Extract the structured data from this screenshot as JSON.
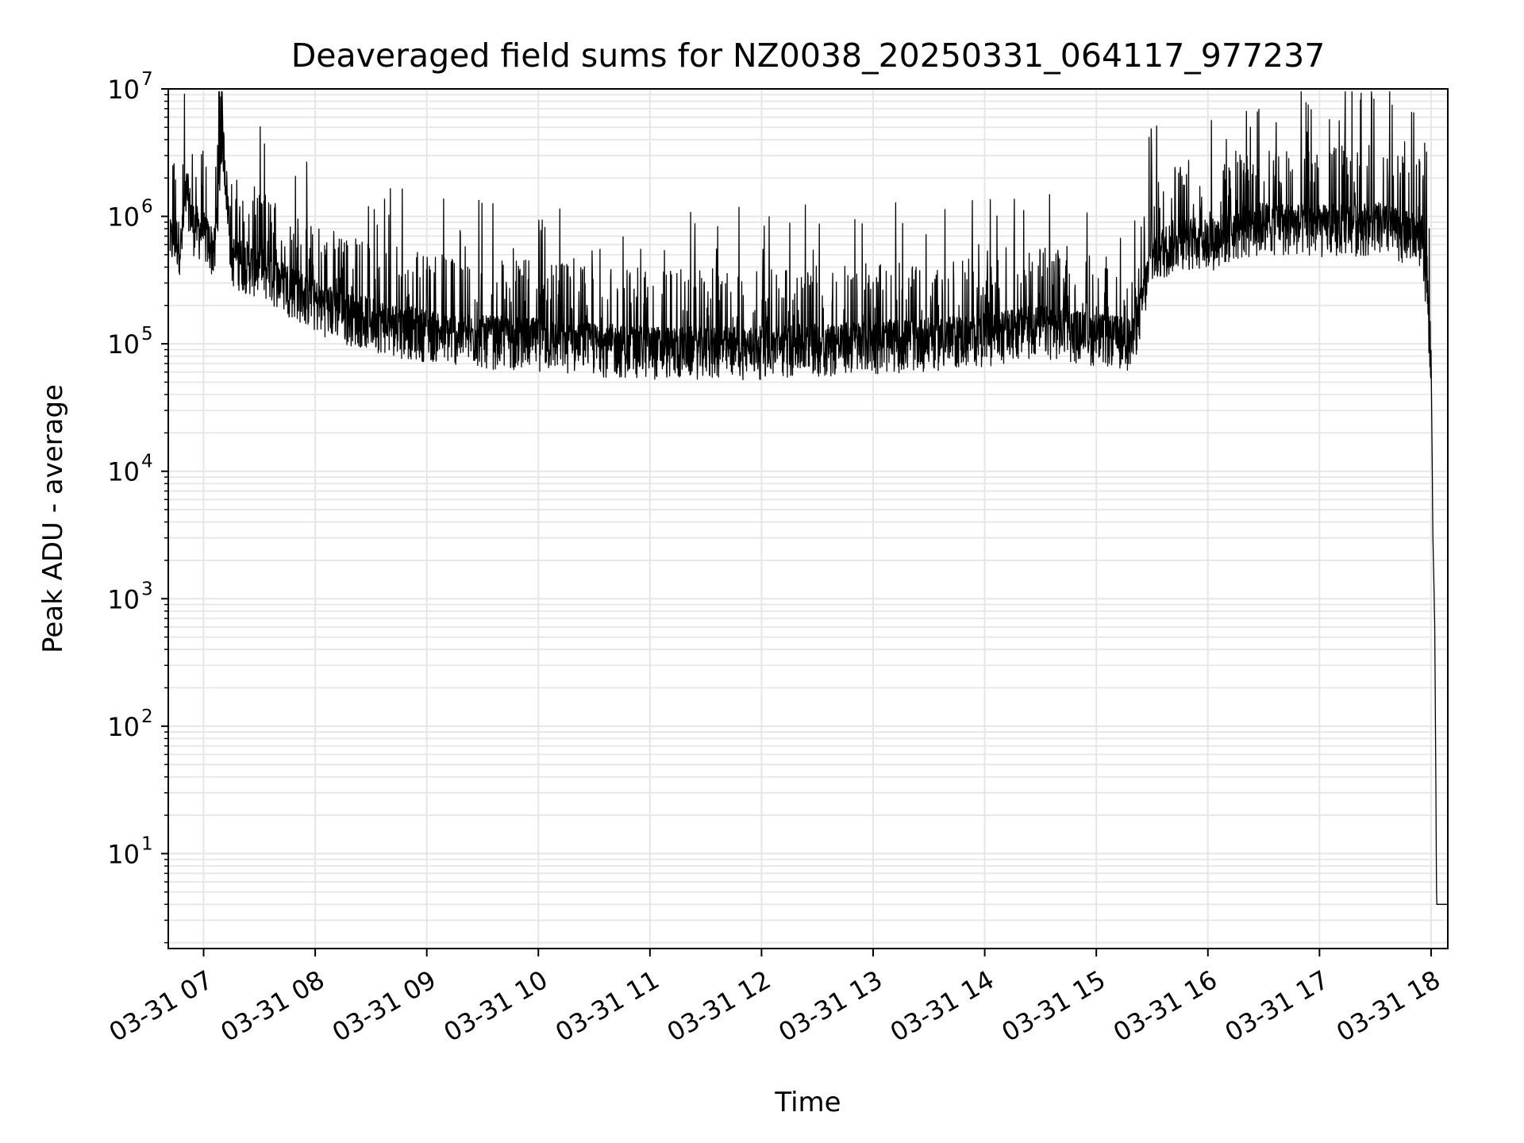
{
  "chart_data": {
    "type": "line",
    "title": "Deaveraged field sums for NZ0038_20250331_064117_977237",
    "xlabel": "Time",
    "ylabel": "Peak ADU - average",
    "yscale": "log",
    "ylim": [
      1.8,
      10000000
    ],
    "xlim": [
      "2025-03-31 06:41",
      "2025-03-31 18:09"
    ],
    "x_ticks": [
      "03-31 07",
      "03-31 08",
      "03-31 09",
      "03-31 10",
      "03-31 11",
      "03-31 12",
      "03-31 13",
      "03-31 14",
      "03-31 15",
      "03-31 16",
      "03-31 17",
      "03-31 18"
    ],
    "y_ticks": [
      {
        "value": 10,
        "base": "10",
        "exp": "1"
      },
      {
        "value": 100,
        "base": "10",
        "exp": "2"
      },
      {
        "value": 1000,
        "base": "10",
        "exp": "3"
      },
      {
        "value": 10000,
        "base": "10",
        "exp": "4"
      },
      {
        "value": 100000,
        "base": "10",
        "exp": "5"
      },
      {
        "value": 1000000,
        "base": "10",
        "exp": "6"
      },
      {
        "value": 10000000,
        "base": "10",
        "exp": "7"
      }
    ],
    "grid": true,
    "line_color": "#000000",
    "grid_color": "#e6e6e6",
    "series": [
      {
        "points": [
          [
            "2025-03-31 06:42",
            650000
          ],
          [
            "2025-03-31 06:45",
            700000
          ],
          [
            "2025-03-31 06:48",
            600000
          ],
          [
            "2025-03-31 06:51",
            1700000
          ],
          [
            "2025-03-31 06:54",
            900000
          ],
          [
            "2025-03-31 07:00",
            750000
          ],
          [
            "2025-03-31 07:06",
            550000
          ],
          [
            "2025-03-31 07:10",
            5000000
          ],
          [
            "2025-03-31 07:15",
            500000
          ],
          [
            "2025-03-31 07:30",
            400000
          ],
          [
            "2025-03-31 07:45",
            300000
          ],
          [
            "2025-03-31 08:00",
            220000
          ],
          [
            "2025-03-31 08:15",
            180000
          ],
          [
            "2025-03-31 08:30",
            160000
          ],
          [
            "2025-03-31 08:45",
            140000
          ],
          [
            "2025-03-31 09:00",
            130000
          ],
          [
            "2025-03-31 09:30",
            115000
          ],
          [
            "2025-03-31 10:00",
            110000
          ],
          [
            "2025-03-31 10:30",
            100000
          ],
          [
            "2025-03-31 11:00",
            95000
          ],
          [
            "2025-03-31 11:30",
            95000
          ],
          [
            "2025-03-31 12:00",
            95000
          ],
          [
            "2025-03-31 12:30",
            100000
          ],
          [
            "2025-03-31 13:00",
            105000
          ],
          [
            "2025-03-31 13:30",
            110000
          ],
          [
            "2025-03-31 14:00",
            120000
          ],
          [
            "2025-03-31 14:30",
            140000
          ],
          [
            "2025-03-31 15:00",
            120000
          ],
          [
            "2025-03-31 15:20",
            110000
          ],
          [
            "2025-03-31 15:30",
            500000
          ],
          [
            "2025-03-31 15:45",
            700000
          ],
          [
            "2025-03-31 16:00",
            650000
          ],
          [
            "2025-03-31 16:15",
            800000
          ],
          [
            "2025-03-31 16:30",
            900000
          ],
          [
            "2025-03-31 17:00",
            850000
          ],
          [
            "2025-03-31 17:30",
            900000
          ],
          [
            "2025-03-31 17:55",
            700000
          ],
          [
            "2025-03-31 18:00",
            90000
          ],
          [
            "2025-03-31 18:01",
            3000
          ],
          [
            "2025-03-31 18:02",
            600
          ],
          [
            "2025-03-31 18:03",
            4
          ],
          [
            "2025-03-31 18:09",
            4
          ]
        ]
      }
    ]
  }
}
